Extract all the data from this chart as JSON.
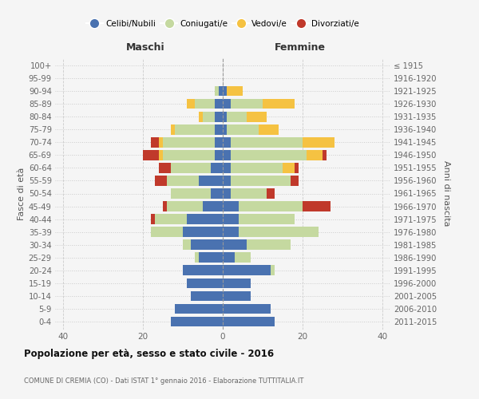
{
  "age_groups": [
    "0-4",
    "5-9",
    "10-14",
    "15-19",
    "20-24",
    "25-29",
    "30-34",
    "35-39",
    "40-44",
    "45-49",
    "50-54",
    "55-59",
    "60-64",
    "65-69",
    "70-74",
    "75-79",
    "80-84",
    "85-89",
    "90-94",
    "95-99",
    "100+"
  ],
  "birth_years": [
    "2011-2015",
    "2006-2010",
    "2001-2005",
    "1996-2000",
    "1991-1995",
    "1986-1990",
    "1981-1985",
    "1976-1980",
    "1971-1975",
    "1966-1970",
    "1961-1965",
    "1956-1960",
    "1951-1955",
    "1946-1950",
    "1941-1945",
    "1936-1940",
    "1931-1935",
    "1926-1930",
    "1921-1925",
    "1916-1920",
    "≤ 1915"
  ],
  "maschi": {
    "celibi": [
      13,
      12,
      8,
      9,
      10,
      6,
      8,
      10,
      9,
      5,
      3,
      6,
      3,
      2,
      2,
      2,
      2,
      2,
      1,
      0,
      0
    ],
    "coniugati": [
      0,
      0,
      0,
      0,
      0,
      1,
      2,
      8,
      8,
      9,
      10,
      8,
      10,
      13,
      13,
      10,
      3,
      5,
      1,
      0,
      0
    ],
    "vedovi": [
      0,
      0,
      0,
      0,
      0,
      0,
      0,
      0,
      0,
      0,
      0,
      0,
      0,
      1,
      1,
      1,
      1,
      2,
      0,
      0,
      0
    ],
    "divorziati": [
      0,
      0,
      0,
      0,
      0,
      0,
      0,
      0,
      1,
      1,
      0,
      3,
      3,
      4,
      2,
      0,
      0,
      0,
      0,
      0,
      0
    ]
  },
  "femmine": {
    "nubili": [
      13,
      12,
      7,
      7,
      12,
      3,
      6,
      4,
      4,
      4,
      2,
      2,
      2,
      2,
      2,
      1,
      1,
      2,
      1,
      0,
      0
    ],
    "coniugate": [
      0,
      0,
      0,
      0,
      1,
      4,
      11,
      20,
      14,
      16,
      9,
      15,
      13,
      19,
      18,
      8,
      5,
      8,
      0,
      0,
      0
    ],
    "vedove": [
      0,
      0,
      0,
      0,
      0,
      0,
      0,
      0,
      0,
      0,
      0,
      0,
      3,
      4,
      8,
      5,
      5,
      8,
      4,
      0,
      0
    ],
    "divorziate": [
      0,
      0,
      0,
      0,
      0,
      0,
      0,
      0,
      0,
      7,
      2,
      2,
      1,
      1,
      0,
      0,
      0,
      0,
      0,
      0,
      0
    ]
  },
  "colors": {
    "celibi": "#4a72b0",
    "coniugati": "#c5d9a0",
    "vedovi": "#f5c242",
    "divorziati": "#c0392b"
  },
  "xlim": [
    -42,
    42
  ],
  "title": "Popolazione per età, sesso e stato civile - 2016",
  "subtitle": "COMUNE DI CREMIA (CO) - Dati ISTAT 1° gennaio 2016 - Elaborazione TUTTITALIA.IT",
  "ylabel_left": "Fasce di età",
  "ylabel_right": "Anni di nascita",
  "header_left": "Maschi",
  "header_right": "Femmine",
  "legend_labels": [
    "Celibi/Nubili",
    "Coniugati/e",
    "Vedovi/e",
    "Divorziati/e"
  ],
  "background_color": "#f5f5f5",
  "grid_color": "#cccccc",
  "tick_color": "#666666"
}
